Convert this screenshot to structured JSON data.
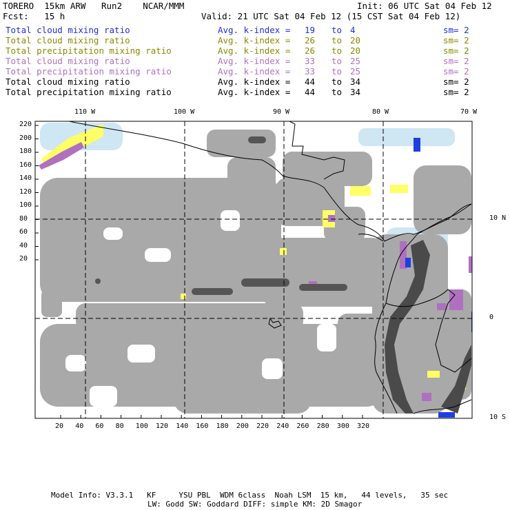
{
  "header": {
    "model": "TORERO  15km ARW   Run2    NCAR/MMM",
    "init": "Init: 06 UTC Sat 04 Feb 12",
    "fcst": "Fcst:   15 h",
    "valid": "Valid: 21 UTC Sat 04 Feb 12 (15 CST Sat 04 Feb 12)"
  },
  "legend": [
    {
      "name": "Total cloud mixing ratio",
      "avg": "Avg. k-index =",
      "a": "19",
      "to": "to",
      "b": "4",
      "sm": "sm= 2",
      "color": "#1f2fd0"
    },
    {
      "name": "Total cloud mixing ratio",
      "avg": "Avg. k-index =",
      "a": "26",
      "to": "to",
      "b": "20",
      "sm": "sm= 2",
      "color": "#8a8a00"
    },
    {
      "name": "Total precipitation mixing ratio",
      "avg": "Avg. k-index =",
      "a": "26",
      "to": "to",
      "b": "20",
      "sm": "sm= 2",
      "color": "#8a8a00"
    },
    {
      "name": "Total cloud mixing ratio",
      "avg": "Avg. k-index =",
      "a": "33",
      "to": "to",
      "b": "25",
      "sm": "sm= 2",
      "color": "#b070c0"
    },
    {
      "name": "Total precipitation mixing ratio",
      "avg": "Avg. k-index =",
      "a": "33",
      "to": "to",
      "b": "25",
      "sm": "sm= 2",
      "color": "#b070c0"
    },
    {
      "name": "Total cloud mixing ratio",
      "avg": "Avg. k-index =",
      "a": "44",
      "to": "to",
      "b": "34",
      "sm": "sm= 2",
      "color": "#000000"
    },
    {
      "name": "Total precipitation mixing ratio",
      "avg": "Avg. k-index =",
      "a": "44",
      "to": "to",
      "b": "34",
      "sm": "sm= 2",
      "color": "#000000"
    }
  ],
  "map": {
    "lon_labels": [
      "110 W",
      "100 W",
      "90 W",
      "80 W",
      "70 W"
    ],
    "lat_labels": [
      "10 N",
      "0",
      "10 S"
    ],
    "y_ticks": [
      "220",
      "200",
      "180",
      "160",
      "140",
      "120",
      "100",
      "80",
      "60",
      "40",
      "20"
    ],
    "x_ticks": [
      "20",
      "40",
      "60",
      "80",
      "100",
      "120",
      "140",
      "160",
      "180",
      "200",
      "220",
      "240",
      "260",
      "280",
      "300",
      "320"
    ]
  },
  "footer": {
    "line1": "Model Info: V3.3.1   KF     YSU PBL  WDM 6class  Noah LSM  15 km,   44 levels,   35 sec",
    "line2": "LW: Godd SW: Goddard DIFF: simple KM: 2D Smagor"
  }
}
